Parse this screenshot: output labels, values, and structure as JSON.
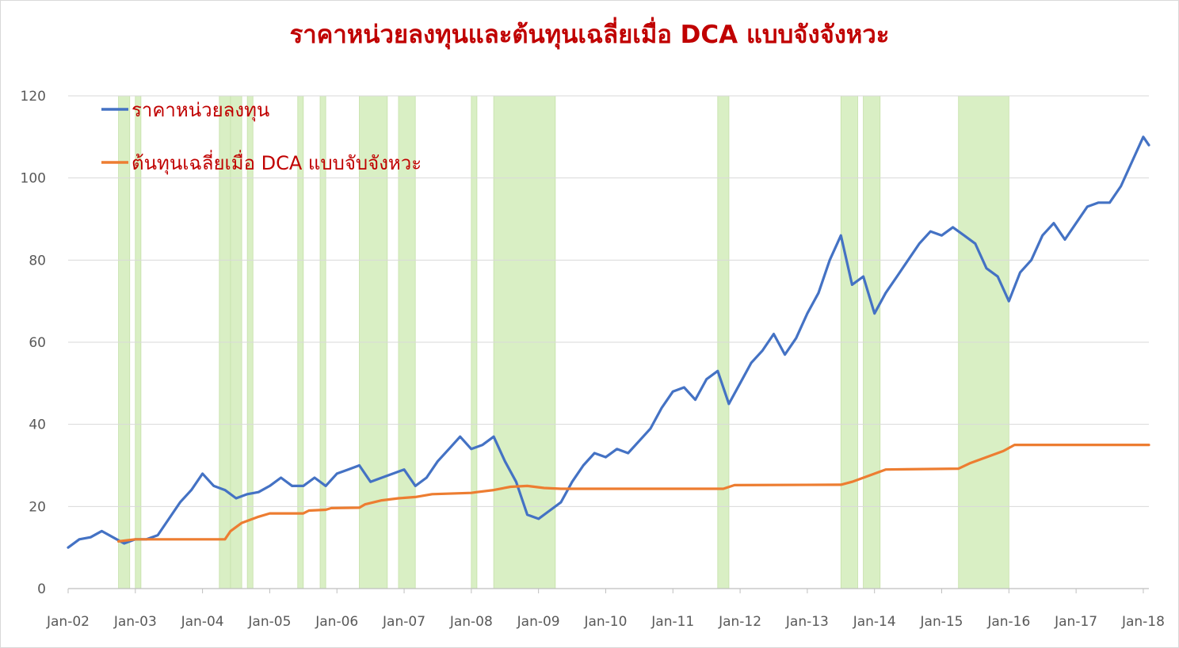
{
  "chart_data": {
    "type": "line",
    "title": "ราคาหน่วยลงทุนและต้นทุนเฉลี่ยเมื่อ DCA แบบจังจังหวะ",
    "xlabel": "",
    "ylabel": "",
    "x_domain": [
      "2002-01",
      "2018-02"
    ],
    "ylim": [
      0,
      120
    ],
    "yticks": [
      0,
      20,
      40,
      60,
      80,
      100,
      120
    ],
    "xticks": [
      "Jan-02",
      "Jan-03",
      "Jan-04",
      "Jan-05",
      "Jan-06",
      "Jan-07",
      "Jan-08",
      "Jan-09",
      "Jan-10",
      "Jan-11",
      "Jan-12",
      "Jan-13",
      "Jan-14",
      "Jan-15",
      "Jan-16",
      "Jan-17",
      "Jan-18"
    ],
    "grid": "horizontal",
    "legend": "top-left",
    "series": [
      {
        "name": "ราคาหน่วยลงทุน",
        "color": "#4472c4",
        "points": [
          [
            "2002-01",
            10
          ],
          [
            "2002-03",
            12
          ],
          [
            "2002-05",
            12.5
          ],
          [
            "2002-07",
            14
          ],
          [
            "2002-09",
            12.5
          ],
          [
            "2002-11",
            11
          ],
          [
            "2003-01",
            12
          ],
          [
            "2003-03",
            12
          ],
          [
            "2003-05",
            13
          ],
          [
            "2003-07",
            17
          ],
          [
            "2003-09",
            21
          ],
          [
            "2003-11",
            24
          ],
          [
            "2004-01",
            28
          ],
          [
            "2004-03",
            25
          ],
          [
            "2004-05",
            24
          ],
          [
            "2004-07",
            22
          ],
          [
            "2004-09",
            23
          ],
          [
            "2004-11",
            23.5
          ],
          [
            "2005-01",
            25
          ],
          [
            "2005-03",
            27
          ],
          [
            "2005-05",
            25
          ],
          [
            "2005-07",
            25
          ],
          [
            "2005-09",
            27
          ],
          [
            "2005-11",
            25
          ],
          [
            "2006-01",
            28
          ],
          [
            "2006-03",
            29
          ],
          [
            "2006-05",
            30
          ],
          [
            "2006-07",
            26
          ],
          [
            "2006-09",
            27
          ],
          [
            "2006-11",
            28
          ],
          [
            "2007-01",
            29
          ],
          [
            "2007-03",
            25
          ],
          [
            "2007-05",
            27
          ],
          [
            "2007-07",
            31
          ],
          [
            "2007-09",
            34
          ],
          [
            "2007-11",
            37
          ],
          [
            "2008-01",
            34
          ],
          [
            "2008-03",
            35
          ],
          [
            "2008-05",
            37
          ],
          [
            "2008-07",
            31
          ],
          [
            "2008-09",
            26
          ],
          [
            "2008-11",
            18
          ],
          [
            "2009-01",
            17
          ],
          [
            "2009-03",
            19
          ],
          [
            "2009-05",
            21
          ],
          [
            "2009-07",
            26
          ],
          [
            "2009-09",
            30
          ],
          [
            "2009-11",
            33
          ],
          [
            "2010-01",
            32
          ],
          [
            "2010-03",
            34
          ],
          [
            "2010-05",
            33
          ],
          [
            "2010-07",
            36
          ],
          [
            "2010-09",
            39
          ],
          [
            "2010-11",
            44
          ],
          [
            "2011-01",
            48
          ],
          [
            "2011-03",
            49
          ],
          [
            "2011-05",
            46
          ],
          [
            "2011-07",
            51
          ],
          [
            "2011-09",
            53
          ],
          [
            "2011-11",
            45
          ],
          [
            "2012-01",
            50
          ],
          [
            "2012-03",
            55
          ],
          [
            "2012-05",
            58
          ],
          [
            "2012-07",
            62
          ],
          [
            "2012-09",
            57
          ],
          [
            "2012-11",
            61
          ],
          [
            "2013-01",
            67
          ],
          [
            "2013-03",
            72
          ],
          [
            "2013-05",
            80
          ],
          [
            "2013-07",
            86
          ],
          [
            "2013-09",
            74
          ],
          [
            "2013-11",
            76
          ],
          [
            "2014-01",
            67
          ],
          [
            "2014-03",
            72
          ],
          [
            "2014-05",
            76
          ],
          [
            "2014-07",
            80
          ],
          [
            "2014-09",
            84
          ],
          [
            "2014-11",
            87
          ],
          [
            "2015-01",
            86
          ],
          [
            "2015-03",
            88
          ],
          [
            "2015-05",
            86
          ],
          [
            "2015-07",
            84
          ],
          [
            "2015-09",
            78
          ],
          [
            "2015-11",
            76
          ],
          [
            "2016-01",
            70
          ],
          [
            "2016-03",
            77
          ],
          [
            "2016-05",
            80
          ],
          [
            "2016-07",
            86
          ],
          [
            "2016-09",
            89
          ],
          [
            "2016-11",
            85
          ],
          [
            "2017-01",
            89
          ],
          [
            "2017-03",
            93
          ],
          [
            "2017-05",
            94
          ],
          [
            "2017-07",
            94
          ],
          [
            "2017-09",
            98
          ],
          [
            "2017-11",
            104
          ],
          [
            "2018-01",
            110
          ],
          [
            "2018-02",
            108
          ]
        ]
      },
      {
        "name": "ต้นทุนเฉลี่ยเมื่อ DCA แบบจับจังหวะ",
        "color": "#ed7d31",
        "points": [
          [
            "2002-10",
            11.5
          ],
          [
            "2003-01",
            12
          ],
          [
            "2004-05",
            12
          ],
          [
            "2004-06",
            14
          ],
          [
            "2004-08",
            16
          ],
          [
            "2004-11",
            17.5
          ],
          [
            "2005-01",
            18.3
          ],
          [
            "2005-07",
            18.3
          ],
          [
            "2005-08",
            19
          ],
          [
            "2005-11",
            19.2
          ],
          [
            "2005-12",
            19.6
          ],
          [
            "2006-05",
            19.7
          ],
          [
            "2006-06",
            20.5
          ],
          [
            "2006-09",
            21.5
          ],
          [
            "2006-12",
            22
          ],
          [
            "2007-03",
            22.3
          ],
          [
            "2007-06",
            23
          ],
          [
            "2008-01",
            23.3
          ],
          [
            "2008-02",
            23.5
          ],
          [
            "2008-05",
            24
          ],
          [
            "2008-08",
            24.8
          ],
          [
            "2008-11",
            25
          ],
          [
            "2009-02",
            24.5
          ],
          [
            "2009-05",
            24.3
          ],
          [
            "2011-10",
            24.3
          ],
          [
            "2011-12",
            25.2
          ],
          [
            "2013-07",
            25.3
          ],
          [
            "2013-09",
            26
          ],
          [
            "2013-12",
            27.5
          ],
          [
            "2014-03",
            29
          ],
          [
            "2015-04",
            29.2
          ],
          [
            "2015-06",
            30.5
          ],
          [
            "2015-09",
            32
          ],
          [
            "2015-12",
            33.5
          ],
          [
            "2016-02",
            35
          ],
          [
            "2018-02",
            35
          ]
        ]
      }
    ],
    "highlight_periods": [
      [
        "2002-10",
        "2002-12"
      ],
      [
        "2003-01",
        "2003-02"
      ],
      [
        "2004-04",
        "2004-06"
      ],
      [
        "2004-06",
        "2004-08"
      ],
      [
        "2004-09",
        "2004-10"
      ],
      [
        "2005-06",
        "2005-07"
      ],
      [
        "2005-10",
        "2005-11"
      ],
      [
        "2006-05",
        "2006-10"
      ],
      [
        "2006-12",
        "2007-03"
      ],
      [
        "2008-01",
        "2008-02"
      ],
      [
        "2008-05",
        "2009-04"
      ],
      [
        "2011-09",
        "2011-11"
      ],
      [
        "2013-07",
        "2013-10"
      ],
      [
        "2013-11",
        "2014-02"
      ],
      [
        "2015-04",
        "2016-01"
      ]
    ],
    "highlight_color": "#d9efc4"
  }
}
